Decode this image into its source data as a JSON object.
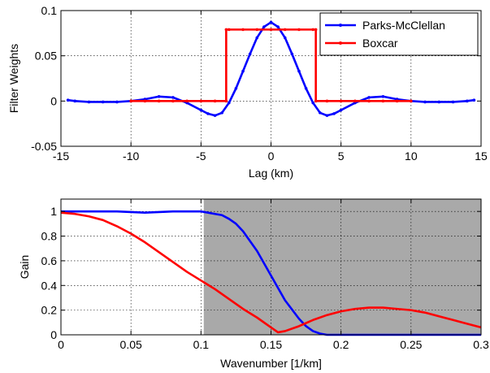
{
  "chart_data": [
    {
      "type": "line",
      "title": "",
      "xlabel": "Lag (km)",
      "ylabel": "Filter Weights",
      "xlim": [
        -15,
        15
      ],
      "ylim": [
        -0.05,
        0.1
      ],
      "xticks": [
        -15,
        -10,
        -5,
        0,
        5,
        10,
        15
      ],
      "xtick_labels": [
        "-15",
        "-10",
        "-5",
        "0",
        "5",
        "10",
        "15"
      ],
      "yticks": [
        -0.05,
        0,
        0.05,
        0.1
      ],
      "ytick_labels": [
        "-0.05",
        "0",
        "0.05",
        "0.1"
      ],
      "grid": true,
      "legend_position": "top-right",
      "series": [
        {
          "name": "Parks-McClellan",
          "color": "#0000ff",
          "markers": true,
          "x": [
            -14.5,
            -14,
            -13,
            -12,
            -11,
            -10,
            -9,
            -8,
            -7,
            -6,
            -5,
            -4.5,
            -4,
            -3.5,
            -3,
            -2.5,
            -2,
            -1.5,
            -1,
            -0.5,
            0,
            0.5,
            1,
            1.5,
            2,
            2.5,
            3,
            3.5,
            4,
            4.5,
            5,
            6,
            7,
            8,
            9,
            10,
            11,
            12,
            13,
            14,
            14.5
          ],
          "y": [
            0.001,
            0.0,
            -0.001,
            -0.001,
            -0.001,
            0.0,
            0.002,
            0.005,
            0.004,
            -0.002,
            -0.01,
            -0.014,
            -0.016,
            -0.013,
            -0.002,
            0.014,
            0.033,
            0.052,
            0.07,
            0.082,
            0.087,
            0.082,
            0.07,
            0.052,
            0.033,
            0.014,
            -0.002,
            -0.013,
            -0.016,
            -0.014,
            -0.01,
            -0.002,
            0.004,
            0.005,
            0.002,
            0.0,
            -0.001,
            -0.001,
            -0.001,
            0.0,
            0.001
          ]
        },
        {
          "name": "Boxcar",
          "color": "#ff0000",
          "markers": true,
          "x": [
            -10,
            -9,
            -8,
            -7,
            -6,
            -5,
            -4,
            -3.2,
            -3.2,
            -3,
            -2,
            -1,
            0,
            1,
            2,
            3,
            3.2,
            3.2,
            4,
            5,
            6,
            7,
            8,
            9,
            10
          ],
          "y": [
            0,
            0,
            0,
            0,
            0,
            0,
            0,
            0,
            0.079,
            0.079,
            0.079,
            0.079,
            0.079,
            0.079,
            0.079,
            0.079,
            0.079,
            0,
            0,
            0,
            0,
            0,
            0,
            0,
            0
          ]
        }
      ]
    },
    {
      "type": "line",
      "title": "",
      "xlabel": "Wavenumber [1/km]",
      "ylabel": "Gain",
      "xlim": [
        0,
        0.3
      ],
      "ylim": [
        0,
        1.1
      ],
      "xticks": [
        0,
        0.05,
        0.1,
        0.15,
        0.2,
        0.25,
        0.3
      ],
      "xtick_labels": [
        "0",
        "0.05",
        "0.1",
        "0.15",
        "0.2",
        "0.25",
        "0.3"
      ],
      "yticks": [
        0,
        0.2,
        0.4,
        0.6,
        0.8,
        1
      ],
      "ytick_labels": [
        "0",
        "0.2",
        "0.4",
        "0.6",
        "0.8",
        "1"
      ],
      "grid": true,
      "shaded_region": {
        "x_from": 0.102,
        "x_to": 0.3,
        "color": "#a9a9a9"
      },
      "series": [
        {
          "name": "",
          "color": "#0000ff",
          "x": [
            0,
            0.02,
            0.04,
            0.06,
            0.08,
            0.09,
            0.1,
            0.105,
            0.11,
            0.115,
            0.12,
            0.125,
            0.13,
            0.14,
            0.15,
            0.16,
            0.17,
            0.175,
            0.18,
            0.185,
            0.19,
            0.2,
            0.22,
            0.25,
            0.28,
            0.3
          ],
          "y": [
            1.0,
            1.0,
            1.0,
            0.99,
            1.0,
            1.0,
            1.0,
            0.99,
            0.98,
            0.97,
            0.94,
            0.9,
            0.84,
            0.68,
            0.48,
            0.28,
            0.13,
            0.07,
            0.03,
            0.01,
            0.0,
            0.0,
            0.0,
            0.0,
            0.0,
            0.0
          ]
        },
        {
          "name": "",
          "color": "#ff0000",
          "x": [
            0,
            0.01,
            0.02,
            0.03,
            0.04,
            0.05,
            0.06,
            0.07,
            0.08,
            0.09,
            0.1,
            0.11,
            0.12,
            0.13,
            0.14,
            0.15,
            0.155,
            0.16,
            0.17,
            0.18,
            0.19,
            0.2,
            0.21,
            0.22,
            0.225,
            0.23,
            0.24,
            0.25,
            0.26,
            0.27,
            0.28,
            0.29,
            0.3
          ],
          "y": [
            0.99,
            0.98,
            0.96,
            0.93,
            0.88,
            0.82,
            0.75,
            0.67,
            0.59,
            0.51,
            0.44,
            0.37,
            0.29,
            0.21,
            0.14,
            0.06,
            0.02,
            0.03,
            0.07,
            0.12,
            0.16,
            0.19,
            0.21,
            0.22,
            0.22,
            0.22,
            0.21,
            0.2,
            0.18,
            0.15,
            0.12,
            0.09,
            0.06
          ]
        }
      ]
    }
  ]
}
